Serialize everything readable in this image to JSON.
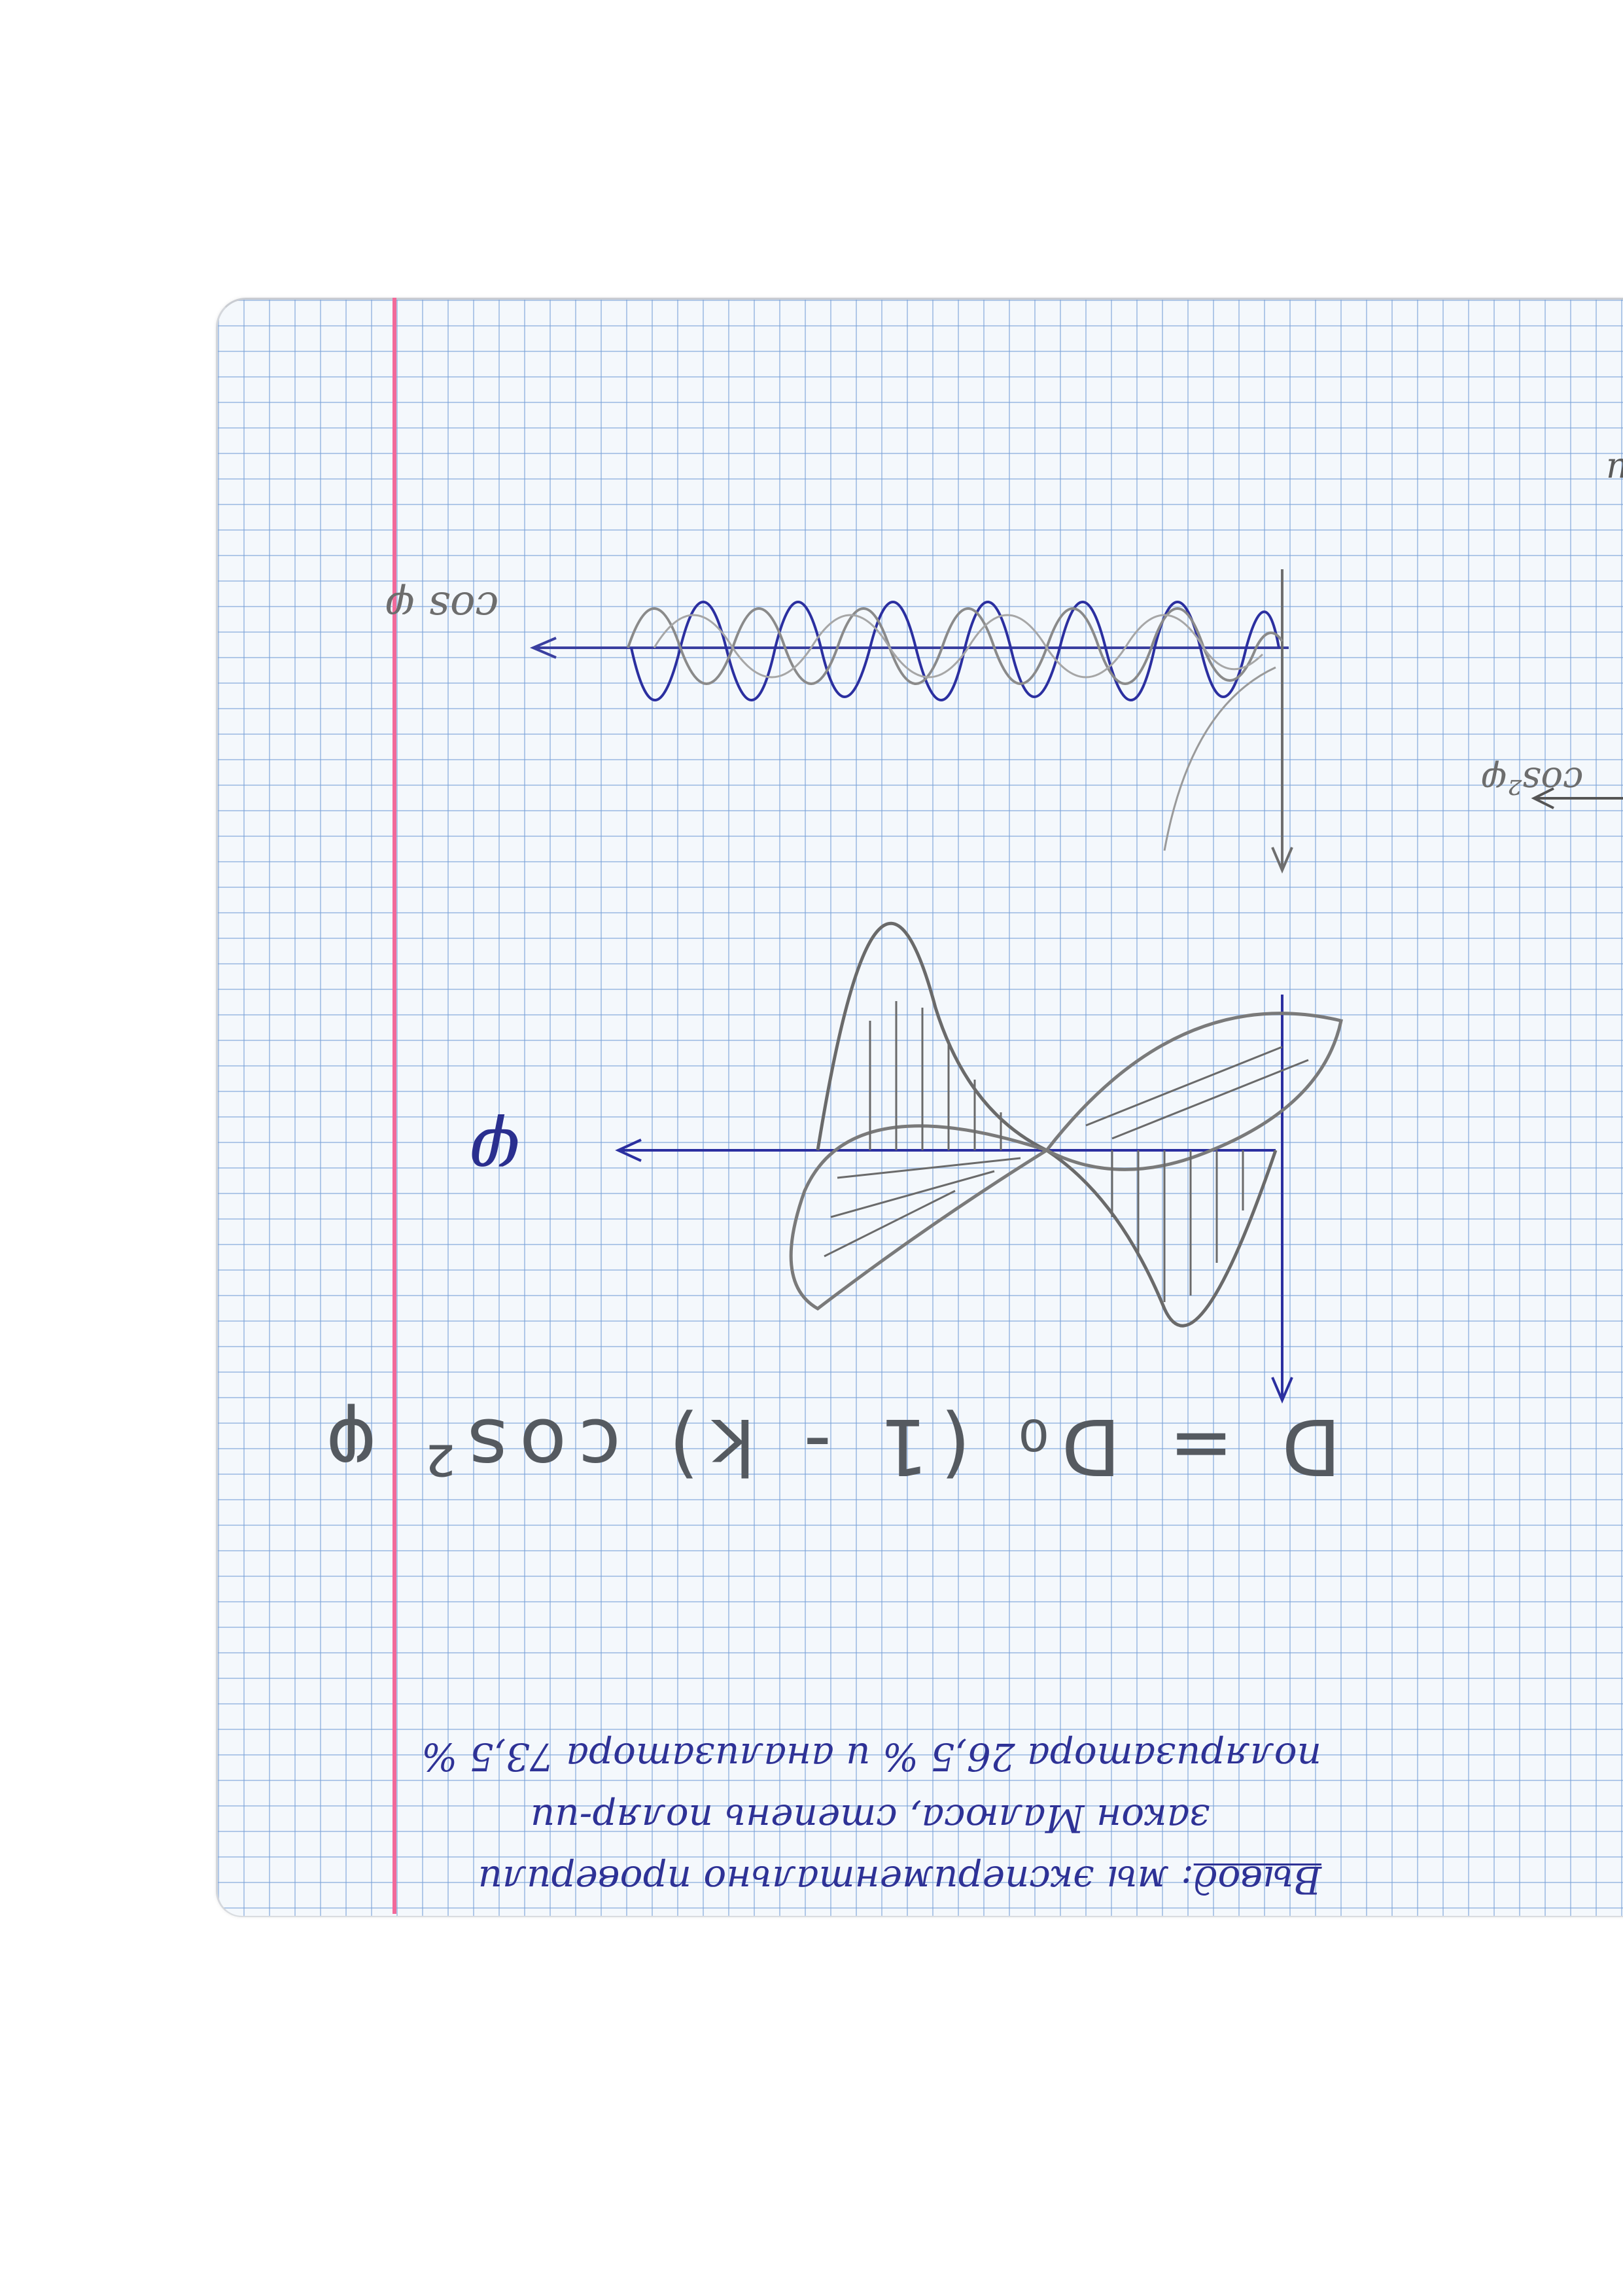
{
  "document": {
    "plot1": {
      "axis_label": "cos φ"
    },
    "plot2": {
      "axis_label": "φ"
    },
    "right_edge_label": "cos²φ",
    "right_edge_fragment": "n",
    "formula": "D = D₀ (1 - k) cos² φ",
    "conclusion": {
      "word": "Вывод",
      "line1": ": мы экспериментально проверили",
      "line2": "закон Малюса, степень поляр-ии",
      "line3": "поляризатора 26,5 % и анализатора 73,5 %"
    }
  }
}
